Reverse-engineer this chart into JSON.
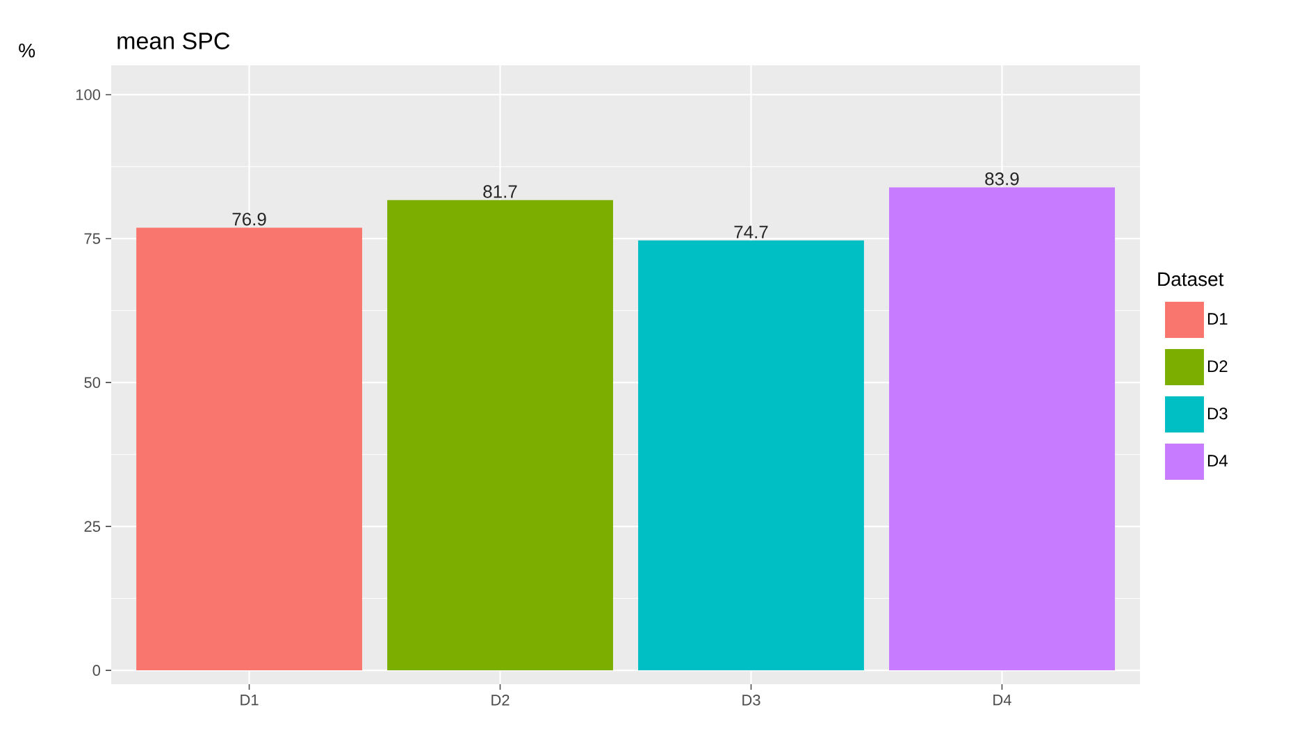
{
  "chart_data": {
    "type": "bar",
    "title": "mean SPC",
    "ylabel": "%",
    "legend_title": "Dataset",
    "categories": [
      "D1",
      "D2",
      "D3",
      "D4"
    ],
    "series": [
      {
        "name": "D1",
        "color": "#f8766d",
        "values": [
          76.9,
          null,
          null,
          null
        ]
      },
      {
        "name": "D2",
        "color": "#7cae00",
        "values": [
          null,
          81.7,
          null,
          null
        ]
      },
      {
        "name": "D3",
        "color": "#00bfc4",
        "values": [
          null,
          null,
          74.7,
          null
        ]
      },
      {
        "name": "D4",
        "color": "#c77cff",
        "values": [
          null,
          null,
          null,
          83.9
        ]
      }
    ],
    "ylim": [
      -2.4,
      105.1
    ],
    "yticks": [
      0,
      25,
      50,
      75,
      100
    ],
    "grid": true,
    "legend": "right",
    "data_labels": true
  }
}
